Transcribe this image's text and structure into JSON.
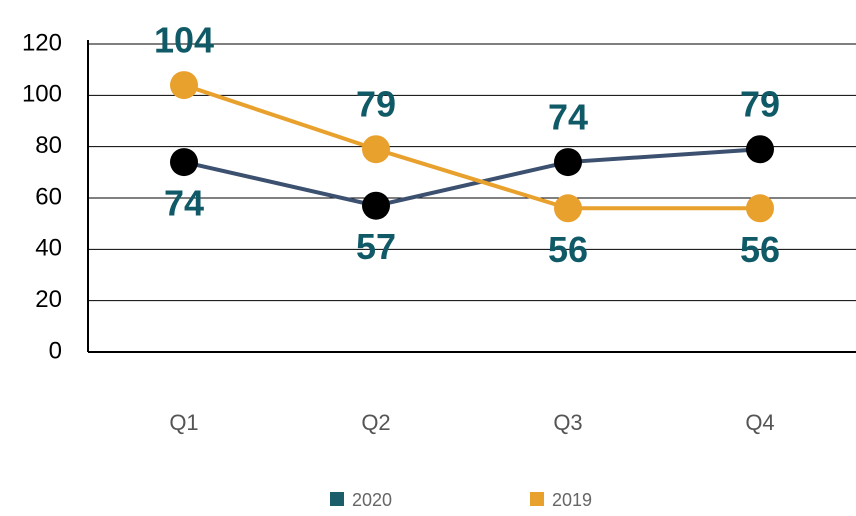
{
  "chart_data": {
    "type": "line",
    "categories": [
      "Q1",
      "Q2",
      "Q3",
      "Q4"
    ],
    "series": [
      {
        "name": "2020",
        "color": "#1b5e69",
        "line_color": "#3c5070",
        "marker_color": "#000000",
        "values": [
          74,
          57,
          74,
          79
        ]
      },
      {
        "name": "2019",
        "color": "#e9a12e",
        "line_color": "#e9a12e",
        "marker_color": "#e9a12e",
        "values": [
          104,
          79,
          56,
          56
        ]
      }
    ],
    "label_color": "#0f5a66",
    "ylim": [
      0,
      120
    ],
    "yticks": [
      0,
      20,
      40,
      60,
      80,
      100,
      120
    ],
    "grid": true
  }
}
